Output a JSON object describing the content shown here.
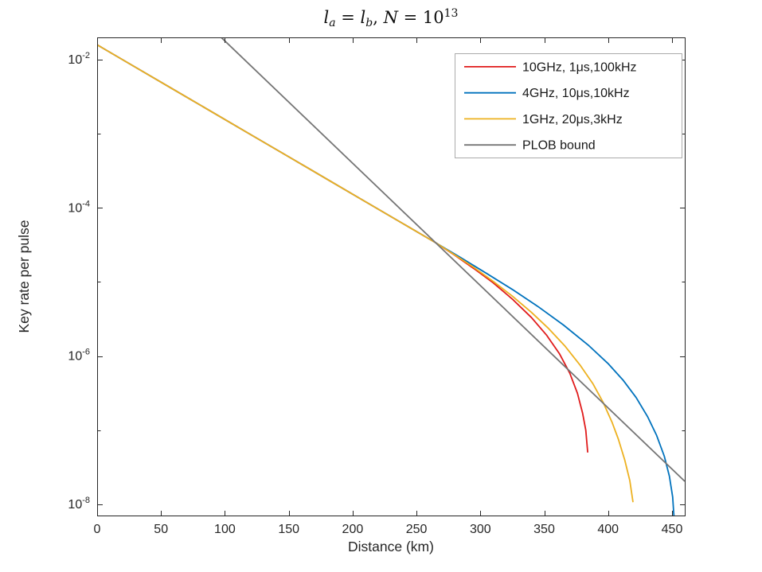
{
  "title": {
    "l1": "l",
    "sub1": "a",
    "eq1": " = ",
    "l2": "l",
    "sub2": "b",
    "comma": ", ",
    "N": "N",
    "eq2": " = 10",
    "exp": "13"
  },
  "axes": {
    "xlabel": "Distance (km)",
    "ylabel": "Key rate per pulse",
    "xticks": [
      0,
      50,
      100,
      150,
      200,
      250,
      300,
      350,
      400,
      450
    ],
    "yticks": [
      {
        "mantissa": "10",
        "exponent": "-2",
        "value": -2
      },
      {
        "mantissa": "10",
        "exponent": "-4",
        "value": -4
      },
      {
        "mantissa": "10",
        "exponent": "-6",
        "value": -6
      },
      {
        "mantissa": "10",
        "exponent": "-8",
        "value": -8
      }
    ],
    "yminor_exponents": [
      -3,
      -5,
      -7
    ],
    "axis_color": "#262626"
  },
  "chart_data": {
    "type": "line",
    "title": "l_a = l_b, N = 10^13",
    "xlabel": "Distance (km)",
    "ylabel": "Key rate per pulse",
    "yscale": "log10",
    "xlim": [
      0,
      460
    ],
    "ylim_log10": [
      -8.15,
      -1.7
    ],
    "grid": false,
    "legend_position": "top-right",
    "note": "points are [distance_km, log10(key rate per pulse)]",
    "series": [
      {
        "name": "10GHz, 1μs,100kHz",
        "color": "#e01b1b",
        "points": [
          [
            0,
            -1.8
          ],
          [
            30,
            -2.102
          ],
          [
            60,
            -2.405
          ],
          [
            90,
            -2.707
          ],
          [
            120,
            -3.009
          ],
          [
            150,
            -3.311
          ],
          [
            180,
            -3.614
          ],
          [
            210,
            -3.916
          ],
          [
            240,
            -4.218
          ],
          [
            265,
            -4.47
          ],
          [
            280,
            -4.64
          ],
          [
            295,
            -4.82
          ],
          [
            310,
            -5.01
          ],
          [
            325,
            -5.23
          ],
          [
            340,
            -5.48
          ],
          [
            352,
            -5.72
          ],
          [
            362,
            -5.97
          ],
          [
            370,
            -6.23
          ],
          [
            376,
            -6.5
          ],
          [
            380,
            -6.77
          ],
          [
            382.5,
            -7.0
          ],
          [
            384,
            -7.3
          ]
        ]
      },
      {
        "name": "4GHz, 10μs,10kHz",
        "color": "#0072bd",
        "points": [
          [
            0,
            -1.8
          ],
          [
            30,
            -2.102
          ],
          [
            60,
            -2.405
          ],
          [
            90,
            -2.707
          ],
          [
            120,
            -3.009
          ],
          [
            150,
            -3.311
          ],
          [
            180,
            -3.614
          ],
          [
            210,
            -3.916
          ],
          [
            240,
            -4.218
          ],
          [
            265,
            -4.47
          ],
          [
            285,
            -4.675
          ],
          [
            305,
            -4.885
          ],
          [
            325,
            -5.1
          ],
          [
            345,
            -5.33
          ],
          [
            365,
            -5.58
          ],
          [
            385,
            -5.86
          ],
          [
            400,
            -6.1
          ],
          [
            412,
            -6.33
          ],
          [
            422,
            -6.56
          ],
          [
            431,
            -6.82
          ],
          [
            438,
            -7.07
          ],
          [
            444,
            -7.35
          ],
          [
            448,
            -7.62
          ],
          [
            450.5,
            -7.9
          ],
          [
            451.5,
            -8.16
          ]
        ]
      },
      {
        "name": "1GHz, 20μs,3kHz",
        "color": "#edb120",
        "points": [
          [
            0,
            -1.8
          ],
          [
            30,
            -2.102
          ],
          [
            60,
            -2.405
          ],
          [
            90,
            -2.707
          ],
          [
            120,
            -3.009
          ],
          [
            150,
            -3.311
          ],
          [
            180,
            -3.614
          ],
          [
            210,
            -3.916
          ],
          [
            240,
            -4.218
          ],
          [
            265,
            -4.47
          ],
          [
            280,
            -4.635
          ],
          [
            295,
            -4.805
          ],
          [
            310,
            -4.99
          ],
          [
            325,
            -5.19
          ],
          [
            340,
            -5.41
          ],
          [
            353,
            -5.62
          ],
          [
            366,
            -5.86
          ],
          [
            378,
            -6.12
          ],
          [
            388,
            -6.37
          ],
          [
            396,
            -6.62
          ],
          [
            403,
            -6.89
          ],
          [
            408,
            -7.12
          ],
          [
            413,
            -7.4
          ],
          [
            417,
            -7.68
          ],
          [
            419.5,
            -7.97
          ]
        ]
      },
      {
        "name": "PLOB bound",
        "color": "#757575",
        "points": [
          [
            97,
            -1.698
          ],
          [
            460,
            -7.688
          ]
        ]
      }
    ],
    "legend": [
      "10GHz, 1μs,100kHz",
      "4GHz, 10μs,10kHz",
      "1GHz, 20μs,3kHz",
      "PLOB bound"
    ]
  }
}
